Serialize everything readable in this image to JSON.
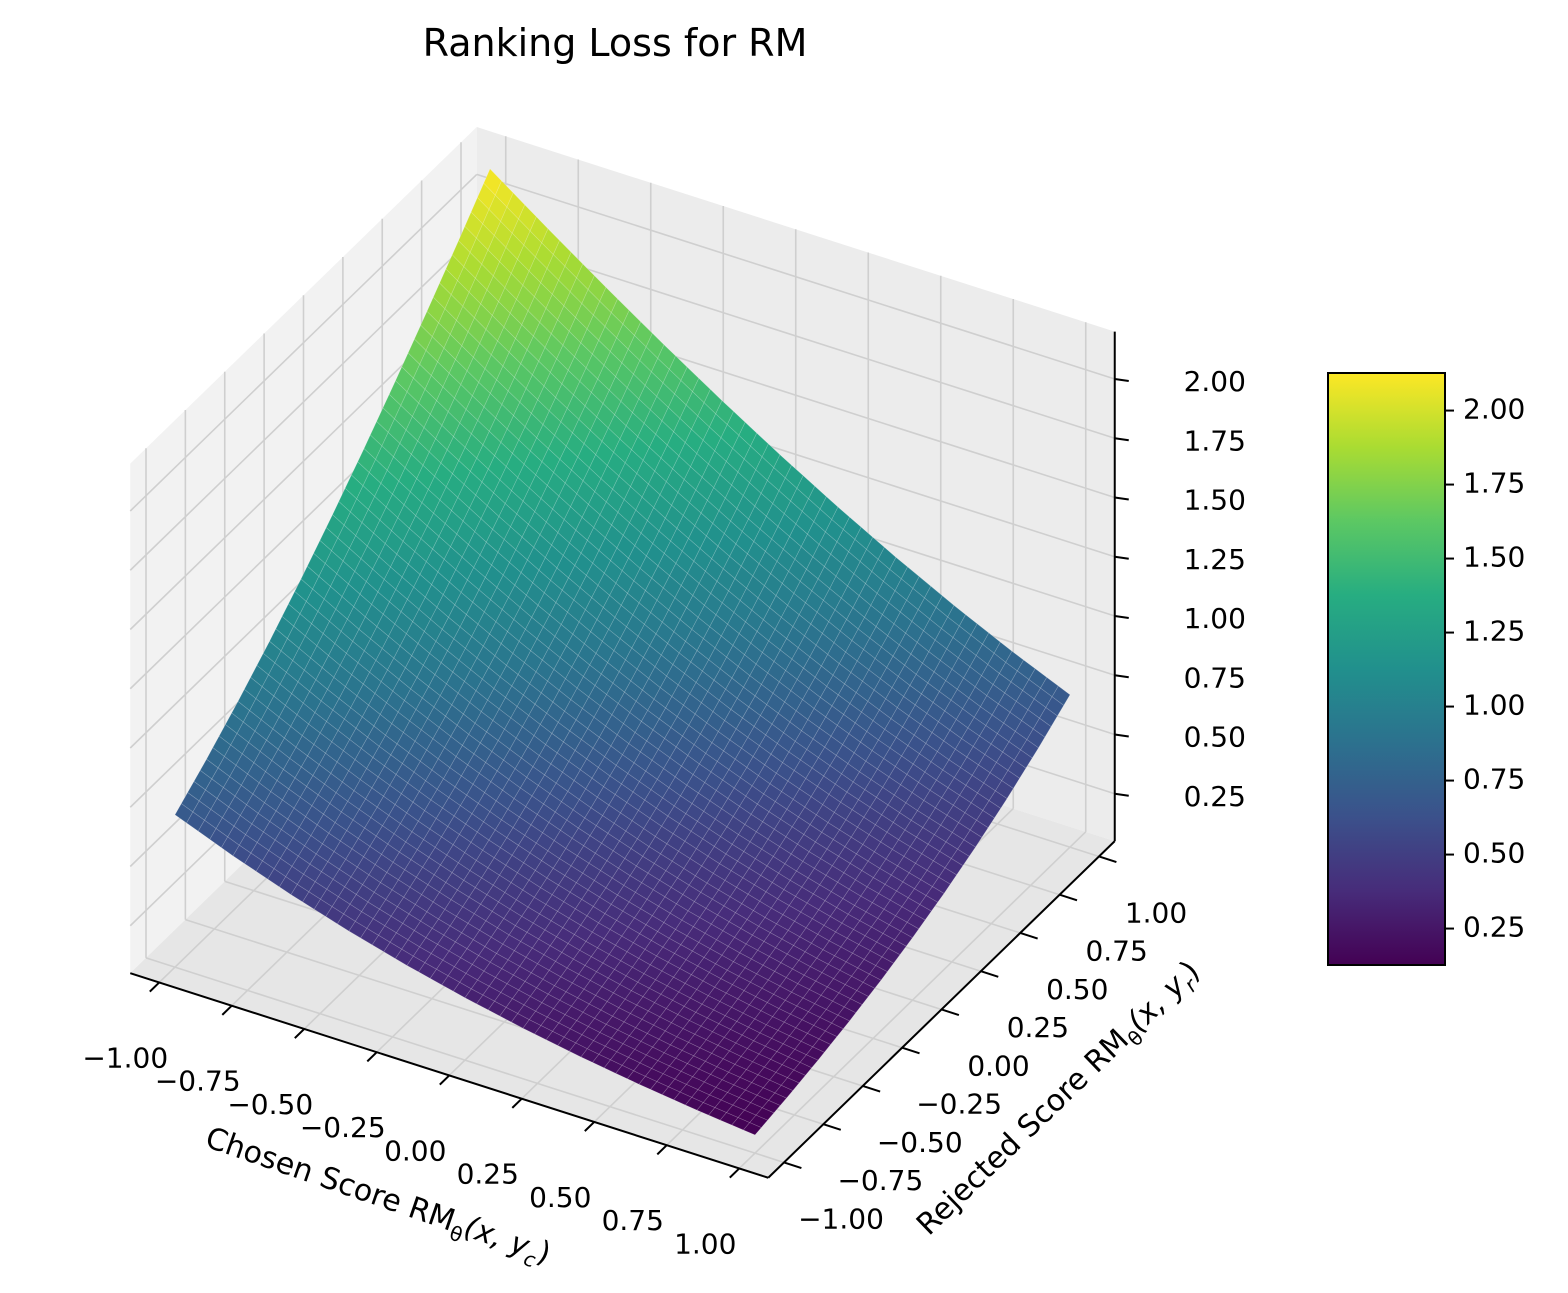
{
  "chart_data": {
    "type": "surface",
    "title": "Ranking Loss for RM",
    "xlabel": {
      "prefix": "Chosen Score RM",
      "theta": "θ",
      "args": "(x, y",
      "sub": "c",
      "close": ")"
    },
    "ylabel": {
      "prefix": "Rejected Score RM",
      "theta": "θ",
      "args": "(x, y",
      "sub": "r",
      "close": ")"
    },
    "xlim": [
      -1,
      1
    ],
    "ylim": [
      -1,
      1
    ],
    "zlim": [
      0.05,
      2.2
    ],
    "x_ticks": [
      "−1.00",
      "−0.75",
      "−0.50",
      "−0.25",
      "0.00",
      "0.25",
      "0.50",
      "0.75",
      "1.00"
    ],
    "y_ticks": [
      "−1.00",
      "−0.75",
      "−0.50",
      "−0.25",
      "0.00",
      "0.25",
      "0.50",
      "0.75",
      "1.00"
    ],
    "z_ticks": [
      "0.25",
      "0.50",
      "0.75",
      "1.00",
      "1.25",
      "1.50",
      "1.75",
      "2.00"
    ],
    "colormap": "viridis",
    "colorbar": {
      "min": 0.1269,
      "max": 2.1269,
      "ticks": [
        "0.25",
        "0.50",
        "0.75",
        "1.00",
        "1.25",
        "1.50",
        "1.75",
        "2.00"
      ]
    },
    "grid": true,
    "x": [
      -1,
      -0.8,
      -0.6,
      -0.4,
      -0.2,
      0,
      0.2,
      0.4,
      0.6,
      0.8,
      1
    ],
    "y": [
      -1,
      -0.8,
      -0.6,
      -0.4,
      -0.2,
      0,
      0.2,
      0.4,
      0.6,
      0.8,
      1
    ],
    "z": [
      [
        0.6931,
        0.5981,
        0.513,
        0.4375,
        0.3711,
        0.3133,
        0.2633,
        0.2204,
        0.1839,
        0.1529,
        0.1269
      ],
      [
        0.7981,
        0.6931,
        0.5981,
        0.513,
        0.4375,
        0.3711,
        0.3133,
        0.2633,
        0.2204,
        0.1839,
        0.1529
      ],
      [
        0.913,
        0.7981,
        0.6931,
        0.5981,
        0.513,
        0.4375,
        0.3711,
        0.3133,
        0.2633,
        0.2204,
        0.1839
      ],
      [
        1.0375,
        0.913,
        0.7981,
        0.6931,
        0.5981,
        0.513,
        0.4375,
        0.3711,
        0.3133,
        0.2633,
        0.2204
      ],
      [
        1.1711,
        1.0375,
        0.913,
        0.7981,
        0.6931,
        0.5981,
        0.513,
        0.4375,
        0.3711,
        0.3133,
        0.2633
      ],
      [
        1.3133,
        1.1711,
        1.0375,
        0.913,
        0.7981,
        0.6931,
        0.5981,
        0.513,
        0.4375,
        0.3711,
        0.3133
      ],
      [
        1.4633,
        1.3133,
        1.1711,
        1.0375,
        0.913,
        0.7981,
        0.6931,
        0.5981,
        0.513,
        0.4375,
        0.3711
      ],
      [
        1.6204,
        1.4633,
        1.3133,
        1.1711,
        1.0375,
        0.913,
        0.7981,
        0.6931,
        0.5981,
        0.513,
        0.4375
      ],
      [
        1.7839,
        1.6204,
        1.4633,
        1.3133,
        1.1711,
        1.0375,
        0.913,
        0.7981,
        0.6931,
        0.5981,
        0.513
      ],
      [
        1.9529,
        1.7839,
        1.6204,
        1.4633,
        1.3133,
        1.1711,
        1.0375,
        0.913,
        0.7981,
        0.6931,
        0.5981
      ],
      [
        2.1269,
        1.9529,
        1.7839,
        1.6204,
        1.4633,
        1.3133,
        1.1711,
        1.0375,
        0.913,
        0.7981,
        0.6931
      ]
    ]
  }
}
